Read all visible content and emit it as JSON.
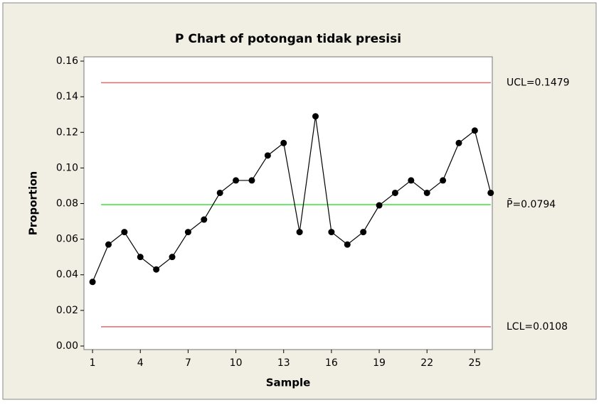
{
  "chart_data": {
    "type": "line",
    "title": "P Chart of potongan tidak presisi",
    "x_label": "Sample",
    "y_label": "Proportion",
    "x": [
      1,
      2,
      3,
      4,
      5,
      6,
      7,
      8,
      9,
      10,
      11,
      12,
      13,
      14,
      15,
      16,
      17,
      18,
      19,
      20,
      21,
      22,
      23,
      24,
      25,
      26
    ],
    "series": [
      {
        "name": "Proportion",
        "color": "#000000",
        "values": [
          0.036,
          0.057,
          0.064,
          0.05,
          0.043,
          0.05,
          0.064,
          0.071,
          0.086,
          0.093,
          0.093,
          0.107,
          0.114,
          0.064,
          0.129,
          0.064,
          0.057,
          0.064,
          0.079,
          0.086,
          0.093,
          0.086,
          0.093,
          0.114,
          0.121,
          0.086
        ]
      }
    ],
    "control_lines": [
      {
        "value": 0.1479,
        "label": "UCL=0.1479",
        "color": "#e8686c"
      },
      {
        "value": 0.0794,
        "label": "P̄=0.0794",
        "color": "#3ee03e"
      },
      {
        "value": 0.0108,
        "label": "LCL=0.0108",
        "color": "#e8686c"
      }
    ],
    "xlim": [
      0.46,
      26.1
    ],
    "ylim": [
      -0.002,
      0.1624
    ],
    "xticks": [
      1,
      4,
      7,
      10,
      13,
      16,
      19,
      22,
      25
    ],
    "yticks": [
      0.16,
      0.14,
      0.12,
      {
        "value": 0.1,
        "label": "0.10"
      },
      0.08,
      0.06,
      0.04,
      0.02,
      {
        "value": 0,
        "label": "0.00"
      }
    ]
  }
}
